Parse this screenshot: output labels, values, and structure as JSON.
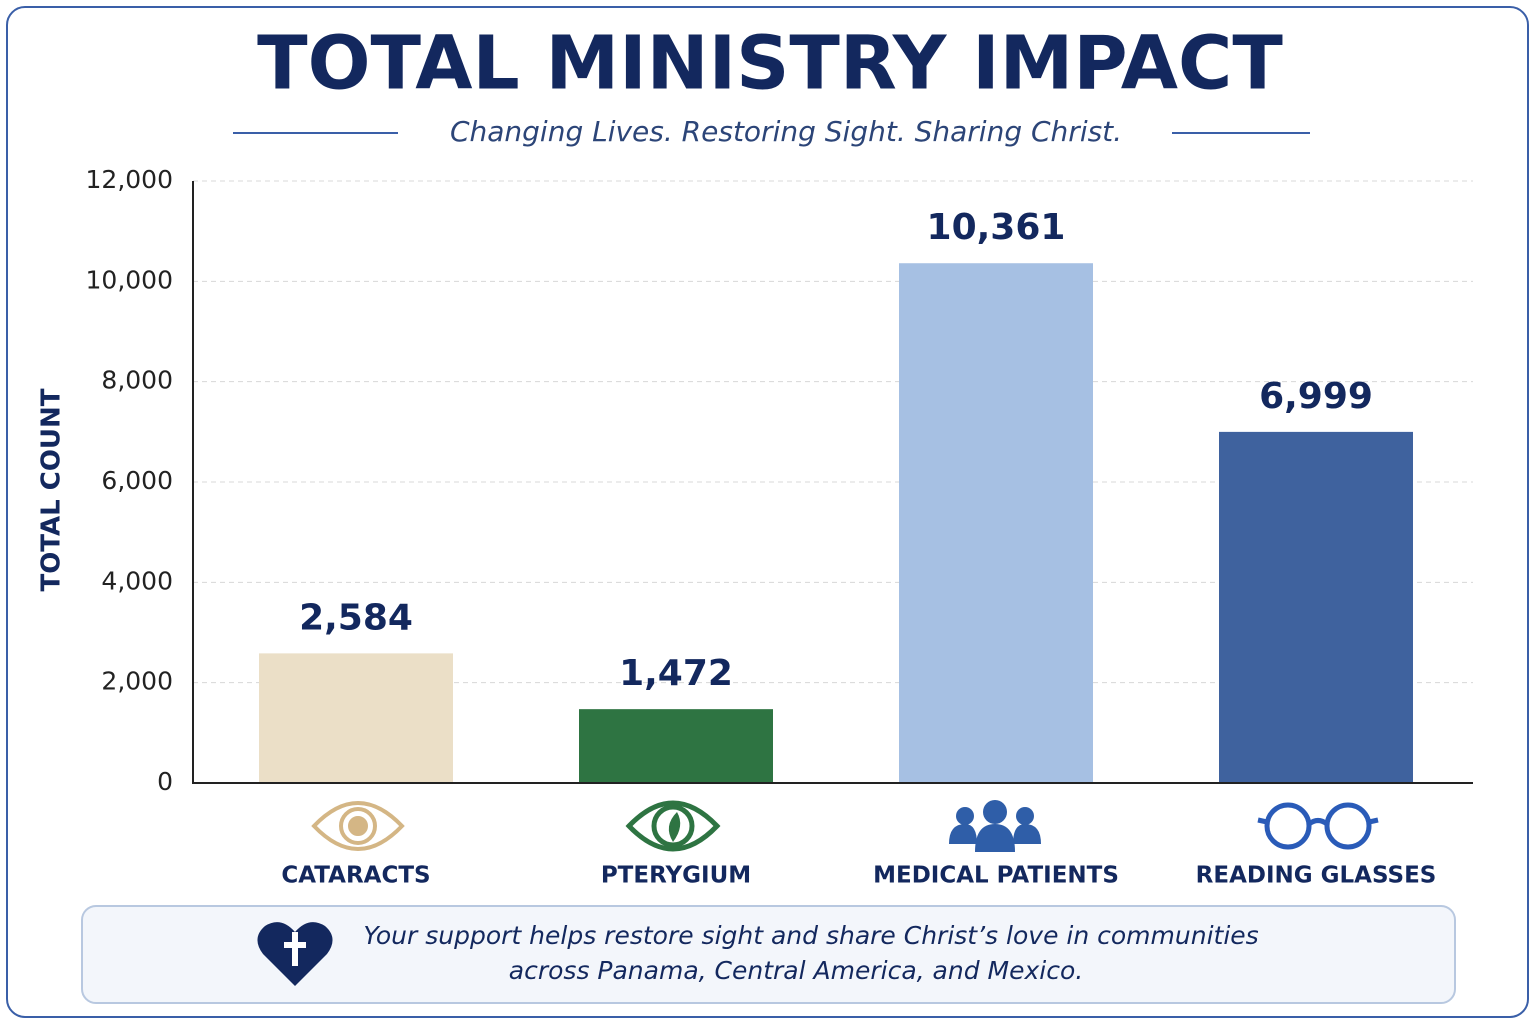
{
  "chart_data": {
    "type": "bar",
    "title": "TOTAL MINISTRY IMPACT",
    "subtitle": "Changing Lives. Restoring Sight. Sharing Christ.",
    "y_label": "TOTAL COUNT",
    "categories": [
      "CATARACTS",
      "PTERYGIUM",
      "MEDICAL PATIENTS",
      "READING GLASSES"
    ],
    "values": [
      2584,
      1472,
      10361,
      6999
    ],
    "value_labels": [
      "2,584",
      "1,472",
      "10,361",
      "6,999"
    ],
    "colors": [
      "#ebdfc7",
      "#2e7442",
      "#a6c0e3",
      "#3f629e"
    ],
    "ylim": [
      0,
      12000
    ],
    "yticks": [
      0,
      {
        "value": 2000,
        "label": "2,000"
      },
      {
        "value": 4000,
        "label": "4,000"
      },
      {
        "value": 6000,
        "label": "6,000"
      },
      {
        "value": 8000,
        "label": "8,000"
      },
      {
        "value": 10000,
        "label": "10,000"
      },
      {
        "value": 12000,
        "label": "12,000"
      }
    ],
    "grid": true
  },
  "footer": {
    "lines": [
      "Your support helps restore sight and share Christ’s love in communities",
      "across Panama, Central America, and Mexico."
    ]
  }
}
